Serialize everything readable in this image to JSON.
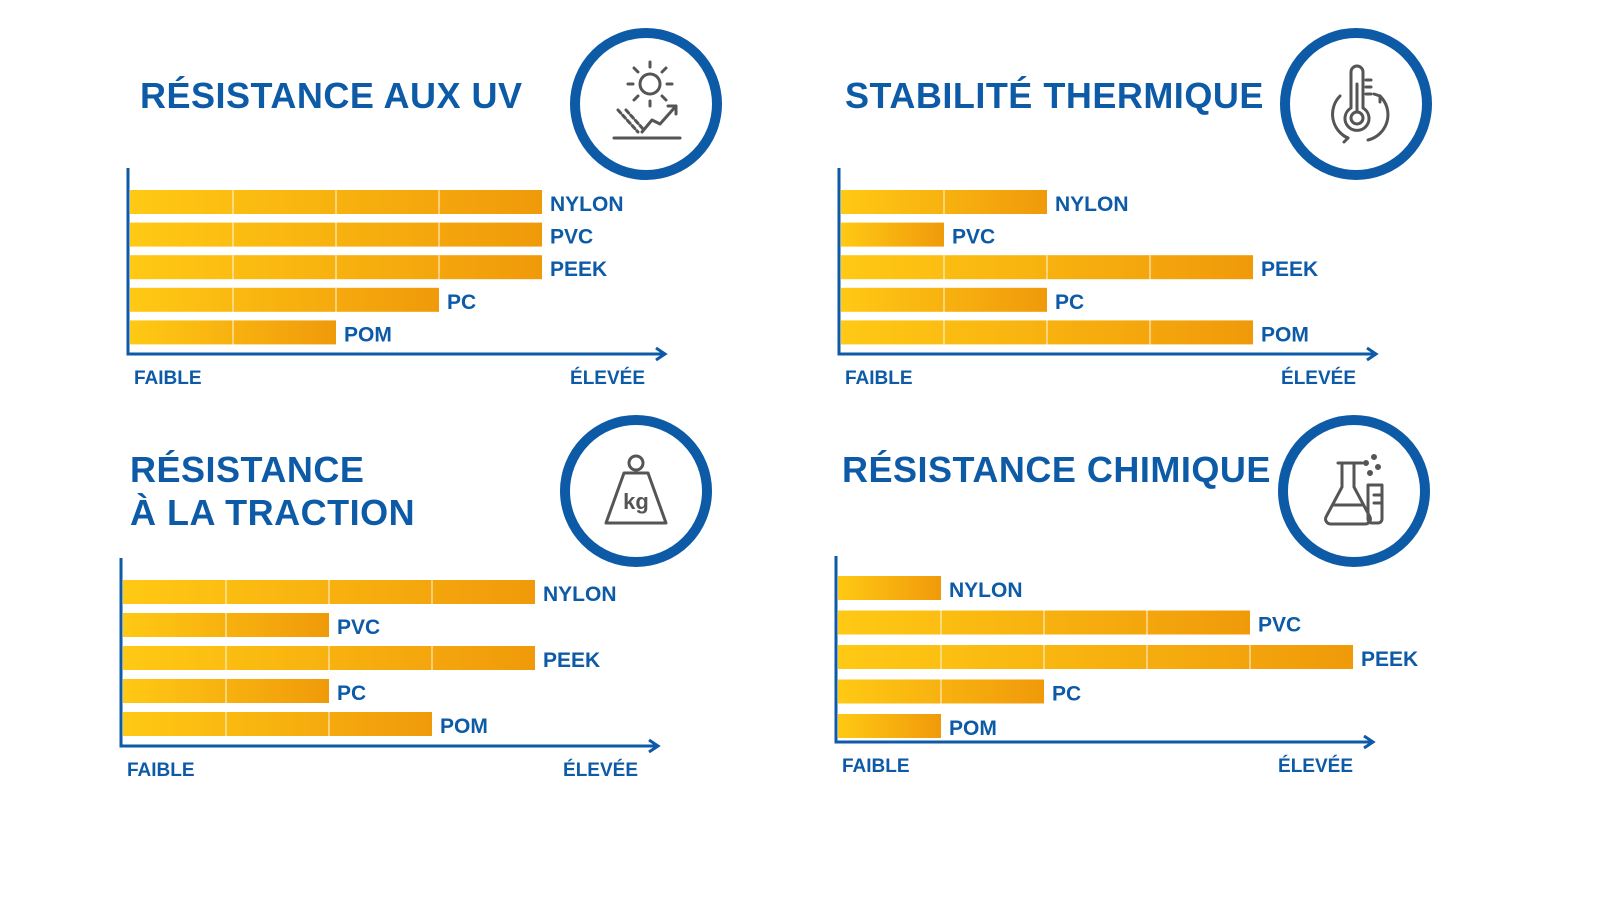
{
  "chart_data": [
    {
      "type": "bar",
      "title": "RÉSISTANCE AUX UV",
      "icon": "sun-rays-icon",
      "categories": [
        "NYLON",
        "PVC",
        "PEEK",
        "PC",
        "POM"
      ],
      "values": [
        4,
        4,
        4,
        3,
        2
      ],
      "xlim": [
        0,
        5
      ],
      "axis_start": "FAIBLE",
      "axis_end": "ÉLEVÉE"
    },
    {
      "type": "bar",
      "title": "STABILITÉ THERMIQUE",
      "icon": "thermometer-icon",
      "categories": [
        "NYLON",
        "PVC",
        "PEEK",
        "PC",
        "POM"
      ],
      "values": [
        2,
        1,
        4,
        2,
        4
      ],
      "xlim": [
        0,
        5
      ],
      "axis_start": "FAIBLE",
      "axis_end": "ÉLEVÉE"
    },
    {
      "type": "bar",
      "title": [
        "RÉSISTANCE",
        "À LA TRACTION"
      ],
      "icon": "weight-kg-icon",
      "icon_text": "kg",
      "categories": [
        "NYLON",
        "PVC",
        "PEEK",
        "PC",
        "POM"
      ],
      "values": [
        4,
        2,
        4,
        2,
        3
      ],
      "xlim": [
        0,
        5
      ],
      "axis_start": "FAIBLE",
      "axis_end": "ÉLEVÉE"
    },
    {
      "type": "bar",
      "title": "RÉSISTANCE CHIMIQUE",
      "icon": "flask-icon",
      "categories": [
        "NYLON",
        "PVC",
        "PEEK",
        "PC",
        "POM"
      ],
      "values": [
        1,
        4,
        5,
        2,
        1
      ],
      "xlim": [
        0,
        5
      ],
      "axis_start": "FAIBLE",
      "axis_end": "ÉLEVÉE"
    }
  ],
  "colors": {
    "brand_blue": "#0d5aa7",
    "bar_light": "#ffc914",
    "bar_dark": "#f09a0a",
    "icon_stroke": "#555555"
  }
}
